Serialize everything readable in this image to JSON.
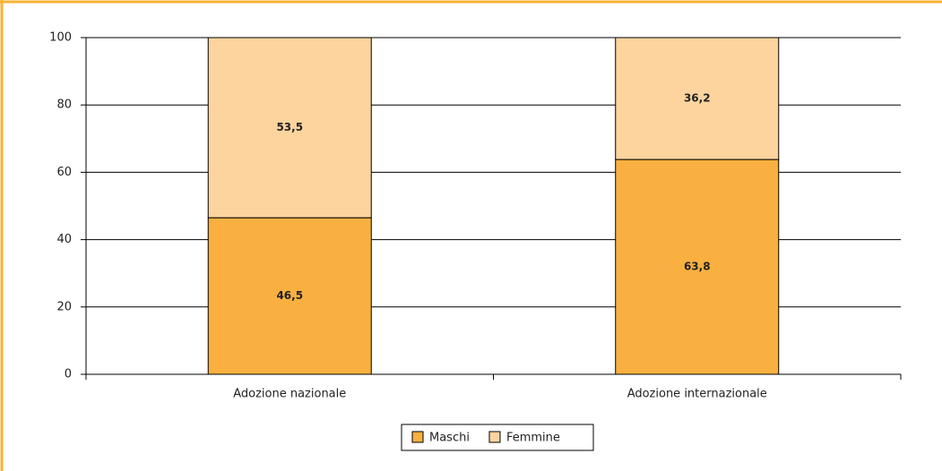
{
  "chart_data": {
    "type": "stacked_bar",
    "categories": [
      "Adozione nazionale",
      "Adozione internazionale"
    ],
    "series": [
      {
        "name": "Maschi",
        "color": "#f9b040",
        "values": [
          46.5,
          63.8
        ],
        "value_labels": [
          "46,5",
          "63,8"
        ]
      },
      {
        "name": "Femmine",
        "color": "#fdd49e",
        "values": [
          53.5,
          36.2
        ],
        "value_labels": [
          "53,5",
          "36,2"
        ]
      }
    ],
    "ylim": [
      0,
      100
    ],
    "yticks": [
      0,
      20,
      40,
      60,
      80,
      100
    ],
    "grid": true,
    "legend": "bottom"
  }
}
